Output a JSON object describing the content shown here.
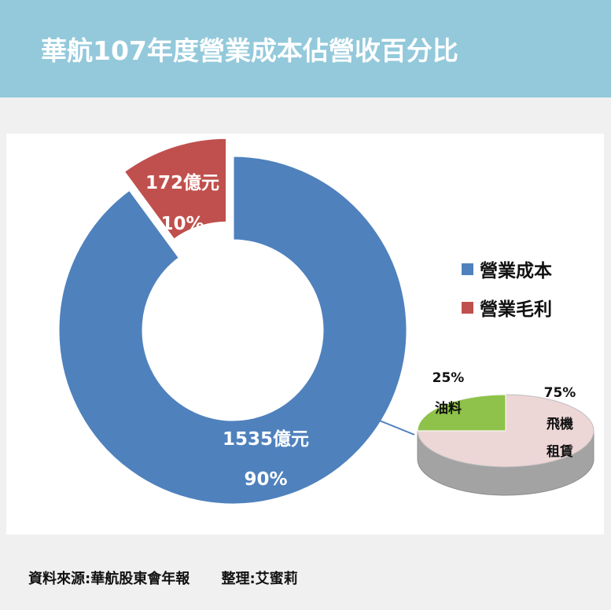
{
  "header": {
    "title": "華航107年度營業成本佔營收百分比"
  },
  "chart_data": [
    {
      "type": "pie",
      "variant": "donut",
      "legend_position": "right",
      "slices": [
        {
          "name": "營業成本",
          "value": 1535,
          "value_label": "1535億元",
          "percent_label": "90%",
          "color": "#4f81bd"
        },
        {
          "name": "營業毛利",
          "value": 172,
          "value_label": "172億元",
          "percent_label": "10%",
          "color": "#c0504d",
          "exploded": true
        }
      ]
    },
    {
      "type": "pie",
      "variant": "3d",
      "slices": [
        {
          "name": "油料",
          "percent_label": "25%",
          "value": 25,
          "color": "#8ec24a"
        },
        {
          "name": "飛機租賃",
          "name_lines": [
            "飛機",
            "租賃"
          ],
          "percent_label": "75%",
          "value": 75,
          "color": "#ecd6d6"
        }
      ]
    }
  ],
  "footer": {
    "source": "資料來源:華航股東會年報",
    "editor": "整理:艾蜜莉"
  }
}
